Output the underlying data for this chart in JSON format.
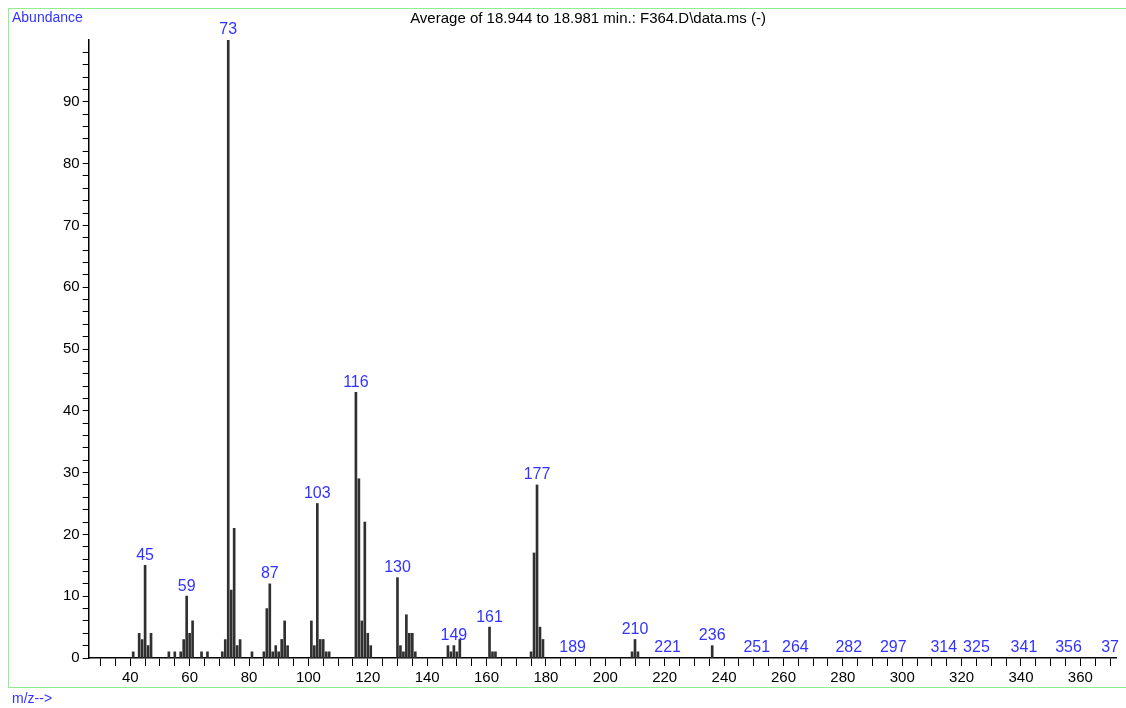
{
  "chart_data": {
    "type": "bar",
    "title": "Average of 18.944 to 18.981 min.: F364.D\\data.ms (-)",
    "xlabel": "m/z-->",
    "ylabel": "Abundance",
    "x": [
      41,
      43,
      44,
      45,
      46,
      47,
      53,
      55,
      57,
      58,
      59,
      60,
      61,
      64,
      66,
      71,
      72,
      73,
      74,
      75,
      76,
      77,
      81,
      85,
      86,
      87,
      88,
      89,
      90,
      91,
      92,
      93,
      101,
      102,
      103,
      104,
      105,
      106,
      107,
      116,
      117,
      118,
      119,
      120,
      121,
      130,
      131,
      132,
      133,
      134,
      135,
      136,
      147,
      148,
      149,
      150,
      151,
      161,
      162,
      163,
      175,
      176,
      177,
      178,
      179,
      189,
      209,
      210,
      211,
      221,
      236,
      251,
      264,
      282,
      297,
      314,
      325,
      341,
      356,
      370
    ],
    "values": [
      1,
      4,
      3,
      15,
      2,
      4,
      1,
      1,
      1,
      3,
      10,
      4,
      6,
      1,
      1,
      1,
      3,
      100,
      11,
      21,
      2,
      3,
      1,
      1,
      8,
      12,
      1,
      2,
      1,
      3,
      6,
      2,
      6,
      2,
      25,
      3,
      3,
      1,
      1,
      43,
      29,
      6,
      22,
      4,
      2,
      13,
      2,
      1,
      7,
      4,
      4,
      1,
      2,
      1,
      2,
      1,
      3,
      5,
      1,
      1,
      1,
      17,
      28,
      5,
      3,
      0,
      1,
      3,
      1,
      0,
      2,
      0,
      0,
      0,
      0,
      0,
      0,
      0,
      0,
      0
    ],
    "color": "#303030",
    "xlim": [
      26,
      372
    ],
    "xticks": [
      {
        "value": 30,
        "label": null
      },
      {
        "value": 35,
        "label": null
      },
      40,
      {
        "value": 45,
        "label": null
      },
      {
        "value": 50,
        "label": null
      },
      {
        "value": 55,
        "label": null
      },
      60,
      {
        "value": 65,
        "label": null
      },
      {
        "value": 70,
        "label": null
      },
      {
        "value": 75,
        "label": null
      },
      80,
      {
        "value": 85,
        "label": null
      },
      {
        "value": 90,
        "label": null
      },
      {
        "value": 95,
        "label": null
      },
      100,
      {
        "value": 105,
        "label": null
      },
      {
        "value": 110,
        "label": null
      },
      {
        "value": 115,
        "label": null
      },
      120,
      {
        "value": 125,
        "label": null
      },
      {
        "value": 130,
        "label": null
      },
      {
        "value": 135,
        "label": null
      },
      140,
      {
        "value": 145,
        "label": null
      },
      {
        "value": 150,
        "label": null
      },
      {
        "value": 155,
        "label": null
      },
      160,
      {
        "value": 165,
        "label": null
      },
      {
        "value": 170,
        "label": null
      },
      {
        "value": 175,
        "label": null
      },
      180,
      {
        "value": 185,
        "label": null
      },
      {
        "value": 190,
        "label": null
      },
      {
        "value": 195,
        "label": null
      },
      200,
      {
        "value": 205,
        "label": null
      },
      {
        "value": 210,
        "label": null
      },
      {
        "value": 215,
        "label": null
      },
      220,
      {
        "value": 225,
        "label": null
      },
      {
        "value": 230,
        "label": null
      },
      {
        "value": 235,
        "label": null
      },
      240,
      {
        "value": 245,
        "label": null
      },
      {
        "value": 250,
        "label": null
      },
      {
        "value": 255,
        "label": null
      },
      260,
      {
        "value": 265,
        "label": null
      },
      {
        "value": 270,
        "label": null
      },
      {
        "value": 275,
        "label": null
      },
      280,
      {
        "value": 285,
        "label": null
      },
      {
        "value": 290,
        "label": null
      },
      {
        "value": 295,
        "label": null
      },
      300,
      {
        "value": 305,
        "label": null
      },
      {
        "value": 310,
        "label": null
      },
      {
        "value": 315,
        "label": null
      },
      320,
      {
        "value": 325,
        "label": null
      },
      {
        "value": 330,
        "label": null
      },
      {
        "value": 335,
        "label": null
      },
      340,
      {
        "value": 345,
        "label": null
      },
      {
        "value": 350,
        "label": null
      },
      {
        "value": 355,
        "label": null
      },
      360,
      {
        "value": 365,
        "label": null
      },
      {
        "value": 370,
        "label": null
      }
    ],
    "ylim": [
      0,
      100
    ],
    "yticks": [
      0,
      {
        "value": 2,
        "label": null
      },
      {
        "value": 4,
        "label": null
      },
      {
        "value": 6,
        "label": null
      },
      {
        "value": 8,
        "label": null
      },
      10,
      {
        "value": 12,
        "label": null
      },
      {
        "value": 14,
        "label": null
      },
      {
        "value": 16,
        "label": null
      },
      {
        "value": 18,
        "label": null
      },
      20,
      {
        "value": 22,
        "label": null
      },
      {
        "value": 24,
        "label": null
      },
      {
        "value": 26,
        "label": null
      },
      {
        "value": 28,
        "label": null
      },
      30,
      {
        "value": 32,
        "label": null
      },
      {
        "value": 34,
        "label": null
      },
      {
        "value": 36,
        "label": null
      },
      {
        "value": 38,
        "label": null
      },
      40,
      {
        "value": 42,
        "label": null
      },
      {
        "value": 44,
        "label": null
      },
      {
        "value": 46,
        "label": null
      },
      {
        "value": 48,
        "label": null
      },
      50,
      {
        "value": 52,
        "label": null
      },
      {
        "value": 54,
        "label": null
      },
      {
        "value": 56,
        "label": null
      },
      {
        "value": 58,
        "label": null
      },
      60,
      {
        "value": 62,
        "label": null
      },
      {
        "value": 64,
        "label": null
      },
      {
        "value": 66,
        "label": null
      },
      {
        "value": 68,
        "label": null
      },
      70,
      {
        "value": 72,
        "label": null
      },
      {
        "value": 74,
        "label": null
      },
      {
        "value": 76,
        "label": null
      },
      {
        "value": 78,
        "label": null
      },
      80,
      {
        "value": 82,
        "label": null
      },
      {
        "value": 84,
        "label": null
      },
      {
        "value": 86,
        "label": null
      },
      {
        "value": 88,
        "label": null
      },
      90,
      {
        "value": 92,
        "label": null
      },
      {
        "value": 94,
        "label": null
      },
      {
        "value": 96,
        "label": null
      },
      {
        "value": 98,
        "label": null
      }
    ],
    "grid": false,
    "legend": false,
    "annotations": [
      {
        "text": "45",
        "x": 45,
        "y": 15
      },
      {
        "text": "59",
        "x": 59,
        "y": 10
      },
      {
        "text": "73",
        "x": 73,
        "y": 100
      },
      {
        "text": "87",
        "x": 87,
        "y": 12
      },
      {
        "text": "103",
        "x": 103,
        "y": 25
      },
      {
        "text": "116",
        "x": 116,
        "y": 43
      },
      {
        "text": "130",
        "x": 130,
        "y": 13
      },
      {
        "text": "149",
        "x": 149,
        "y": 2
      },
      {
        "text": "161",
        "x": 161,
        "y": 5
      },
      {
        "text": "177",
        "x": 177,
        "y": 28
      },
      {
        "text": "189",
        "x": 189,
        "y": 0
      },
      {
        "text": "210",
        "x": 210,
        "y": 3
      },
      {
        "text": "221",
        "x": 221,
        "y": 0
      },
      {
        "text": "236",
        "x": 236,
        "y": 2
      },
      {
        "text": "251",
        "x": 251,
        "y": 0
      },
      {
        "text": "264",
        "x": 264,
        "y": 0
      },
      {
        "text": "282",
        "x": 282,
        "y": 0
      },
      {
        "text": "297",
        "x": 297,
        "y": 0
      },
      {
        "text": "314",
        "x": 314,
        "y": 0
      },
      {
        "text": "325",
        "x": 325,
        "y": 0
      },
      {
        "text": "341",
        "x": 341,
        "y": 0
      },
      {
        "text": "356",
        "x": 356,
        "y": 0
      },
      {
        "text": "37",
        "x": 370,
        "y": 0
      }
    ]
  }
}
